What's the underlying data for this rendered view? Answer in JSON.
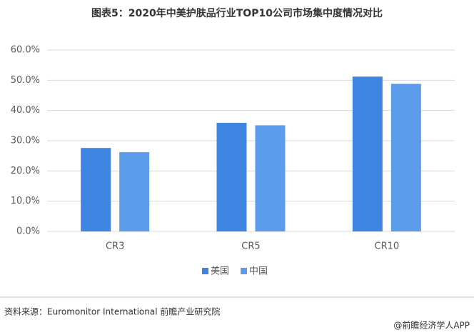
{
  "chart_data": {
    "type": "bar",
    "title": "图表5：2020年中美护肤品行业TOP10公司市场集中度情况对比",
    "categories": [
      "CR3",
      "CR5",
      "CR10"
    ],
    "series": [
      {
        "name": "美国",
        "color": "#3d85e0",
        "values": [
          27.6,
          35.9,
          51.2
        ]
      },
      {
        "name": "中国",
        "color": "#5b9cea",
        "values": [
          26.2,
          35.1,
          48.8
        ]
      }
    ],
    "ylim": [
      0,
      60
    ],
    "yticks": [
      {
        "value": 0,
        "label": "0.0%"
      },
      {
        "value": 10,
        "label": "10.0%"
      },
      {
        "value": 20,
        "label": "20.0%"
      },
      {
        "value": 30,
        "label": "30.0%"
      },
      {
        "value": 40,
        "label": "40.0%"
      },
      {
        "value": 50,
        "label": "50.0%"
      },
      {
        "value": 60,
        "label": "60.0%"
      }
    ],
    "grid": true,
    "legend": "bottom",
    "source": "资料来源：Euromonitor International 前瞻产业研究院",
    "footer": "@前瞻经济学人APP"
  }
}
